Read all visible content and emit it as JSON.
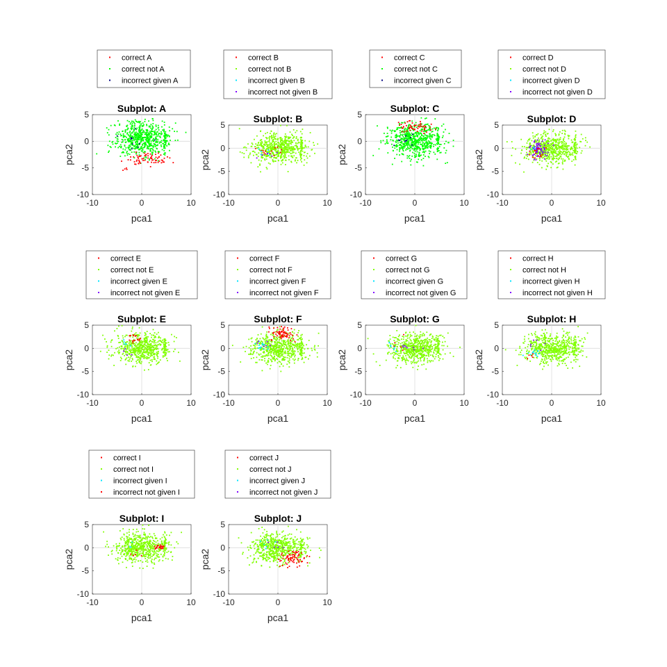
{
  "figure": {
    "colors": {
      "red": "#ff0000",
      "green": "#00ff00",
      "lime": "#80ff00",
      "cyan": "#00e5ff",
      "navy": "#000080",
      "purple": "#7f00ff"
    }
  },
  "chart_data": [
    {
      "type": "scatter",
      "title": "Subplot: A",
      "xlabel": "pca1",
      "ylabel": "pca2",
      "xlim": [
        -10,
        10
      ],
      "ylim": [
        -10,
        5
      ],
      "xticks": [
        -10,
        0,
        10
      ],
      "yticks": [
        -10,
        -5,
        0,
        5
      ],
      "grid": "zero-lines",
      "legend": {
        "placement": "above",
        "entries": [
          {
            "label": "correct A",
            "color": "red"
          },
          {
            "label": "correct not A",
            "color": "green"
          },
          {
            "label": "incorrect given A",
            "color": "navy"
          }
        ]
      },
      "series": [
        {
          "label": "correct not A",
          "color": "green",
          "clouds": [
            [
              0,
              0.6,
              2.8,
              1.6,
              620
            ],
            [
              4.7,
              0.5,
              0.15,
              1.2,
              40
            ]
          ]
        },
        {
          "label": "correct A",
          "color": "red",
          "clouds": [
            [
              1,
              -3.4,
              2.2,
              0.6,
              70
            ],
            [
              -3.5,
              -5,
              0.6,
              0.3,
              4
            ]
          ]
        },
        {
          "label": "incorrect given A",
          "color": "navy",
          "clouds": [
            [
              -1.5,
              0.4,
              1.8,
              0.9,
              10
            ]
          ]
        }
      ]
    },
    {
      "type": "scatter",
      "title": "Subplot: B",
      "xlabel": "pca1",
      "ylabel": "pca2",
      "xlim": [
        -10,
        10
      ],
      "ylim": [
        -10,
        5
      ],
      "xticks": [
        -10,
        0,
        10
      ],
      "yticks": [
        -10,
        -5,
        0,
        5
      ],
      "grid": "zero-lines",
      "legend": {
        "placement": "above",
        "entries": [
          {
            "label": "correct B",
            "color": "red"
          },
          {
            "label": "correct not B",
            "color": "lime"
          },
          {
            "label": "incorrect given B",
            "color": "cyan"
          },
          {
            "label": "incorrect not given B",
            "color": "purple"
          }
        ]
      },
      "series": [
        {
          "label": "correct not B",
          "color": "lime",
          "clouds": [
            [
              0,
              0,
              2.8,
              1.6,
              600
            ],
            [
              4.7,
              0.3,
              0.15,
              1.2,
              40
            ]
          ]
        },
        {
          "label": "correct B",
          "color": "red",
          "clouds": [
            [
              -2.3,
              -0.7,
              1.3,
              0.6,
              14
            ]
          ]
        },
        {
          "label": "incorrect given B",
          "color": "cyan",
          "clouds": [
            [
              -2.7,
              -0.9,
              0.8,
              0.5,
              6
            ]
          ]
        },
        {
          "label": "incorrect not given B",
          "color": "purple",
          "clouds": [
            [
              -1.8,
              -1.5,
              1.0,
              0.6,
              6
            ]
          ]
        }
      ]
    },
    {
      "type": "scatter",
      "title": "Subplot: C",
      "xlabel": "pca1",
      "ylabel": "pca2",
      "xlim": [
        -10,
        10
      ],
      "ylim": [
        -10,
        5
      ],
      "xticks": [
        -10,
        0,
        10
      ],
      "yticks": [
        -10,
        -5,
        0,
        5
      ],
      "grid": "zero-lines",
      "legend": {
        "placement": "above",
        "entries": [
          {
            "label": "correct C",
            "color": "red"
          },
          {
            "label": "correct not C",
            "color": "green"
          },
          {
            "label": "incorrect given C",
            "color": "navy"
          }
        ]
      },
      "series": [
        {
          "label": "correct not C",
          "color": "green",
          "clouds": [
            [
              0,
              0,
              2.8,
              1.7,
              620
            ],
            [
              4.7,
              0.3,
              0.15,
              1.2,
              40
            ]
          ]
        },
        {
          "label": "correct C",
          "color": "red",
          "clouds": [
            [
              0.4,
              2.6,
              1.8,
              0.6,
              55
            ]
          ]
        },
        {
          "label": "incorrect given C",
          "color": "navy",
          "clouds": [
            [
              -1.6,
              0.5,
              1.2,
              0.8,
              10
            ]
          ]
        }
      ]
    },
    {
      "type": "scatter",
      "title": "Subplot: D",
      "xlabel": "pca1",
      "ylabel": "pca2",
      "xlim": [
        -10,
        10
      ],
      "ylim": [
        -10,
        5
      ],
      "xticks": [
        -10,
        0,
        10
      ],
      "yticks": [
        -10,
        -5,
        0,
        5
      ],
      "grid": "zero-lines",
      "legend": {
        "placement": "above",
        "entries": [
          {
            "label": "correct D",
            "color": "red"
          },
          {
            "label": "correct not D",
            "color": "lime"
          },
          {
            "label": "incorrect given D",
            "color": "cyan"
          },
          {
            "label": "incorrect not given D",
            "color": "purple"
          }
        ]
      },
      "series": [
        {
          "label": "correct not D",
          "color": "lime",
          "clouds": [
            [
              0,
              0,
              2.8,
              1.6,
              600
            ],
            [
              4.7,
              0.3,
              0.15,
              1.2,
              40
            ]
          ]
        },
        {
          "label": "incorrect not given D",
          "color": "purple",
          "clouds": [
            [
              -2.6,
              0,
              0.9,
              1.1,
              75
            ]
          ]
        },
        {
          "label": "correct D",
          "color": "red",
          "clouds": [
            [
              -2.4,
              -0.9,
              1.0,
              1.0,
              15
            ]
          ]
        },
        {
          "label": "incorrect given D",
          "color": "cyan",
          "clouds": [
            [
              -3.8,
              0.2,
              0.4,
              0.4,
              4
            ]
          ]
        }
      ]
    },
    {
      "type": "scatter",
      "title": "Subplot: E",
      "xlabel": "pca1",
      "ylabel": "pca2",
      "xlim": [
        -10,
        10
      ],
      "ylim": [
        -10,
        5
      ],
      "xticks": [
        -10,
        0,
        10
      ],
      "yticks": [
        -10,
        -5,
        0,
        5
      ],
      "grid": "zero-lines",
      "legend": {
        "placement": "above",
        "entries": [
          {
            "label": "correct E",
            "color": "red"
          },
          {
            "label": "correct not E",
            "color": "lime"
          },
          {
            "label": "incorrect given E",
            "color": "cyan"
          },
          {
            "label": "incorrect not given E",
            "color": "purple"
          }
        ]
      },
      "series": [
        {
          "label": "correct not E",
          "color": "lime",
          "clouds": [
            [
              0,
              0,
              2.8,
              1.6,
              600
            ],
            [
              4.7,
              0.3,
              0.15,
              1.2,
              40
            ]
          ]
        },
        {
          "label": "correct E",
          "color": "red",
          "clouds": [
            [
              -1.5,
              1.9,
              1.3,
              0.5,
              16
            ]
          ]
        },
        {
          "label": "incorrect given E",
          "color": "cyan",
          "clouds": [
            [
              -3.4,
              0.5,
              0.6,
              0.6,
              6
            ]
          ]
        },
        {
          "label": "incorrect not given E",
          "color": "purple",
          "clouds": [
            [
              -2.5,
              -1.3,
              0.8,
              0.6,
              4
            ]
          ]
        }
      ]
    },
    {
      "type": "scatter",
      "title": "Subplot: F",
      "xlabel": "pca1",
      "ylabel": "pca2",
      "xlim": [
        -10,
        10
      ],
      "ylim": [
        -10,
        5
      ],
      "xticks": [
        -10,
        0,
        10
      ],
      "yticks": [
        -10,
        -5,
        0,
        5
      ],
      "grid": "zero-lines",
      "legend": {
        "placement": "above",
        "entries": [
          {
            "label": "correct F",
            "color": "red"
          },
          {
            "label": "correct not F",
            "color": "lime"
          },
          {
            "label": "incorrect given F",
            "color": "cyan"
          },
          {
            "label": "incorrect not given F",
            "color": "purple"
          }
        ]
      },
      "series": [
        {
          "label": "correct not F",
          "color": "lime",
          "clouds": [
            [
              0,
              0,
              2.8,
              1.6,
              600
            ],
            [
              4.7,
              0.3,
              0.15,
              1.2,
              40
            ]
          ]
        },
        {
          "label": "correct F",
          "color": "red",
          "clouds": [
            [
              1.0,
              3.3,
              1.2,
              0.7,
              70
            ]
          ]
        },
        {
          "label": "incorrect given F",
          "color": "cyan",
          "clouds": [
            [
              -3.3,
              0.3,
              0.7,
              0.6,
              14
            ]
          ]
        },
        {
          "label": "incorrect not given F",
          "color": "purple",
          "clouds": [
            [
              -2.5,
              0.9,
              1.0,
              0.6,
              6
            ]
          ]
        }
      ]
    },
    {
      "type": "scatter",
      "title": "Subplot: G",
      "xlabel": "pca1",
      "ylabel": "pca2",
      "xlim": [
        -10,
        10
      ],
      "ylim": [
        -10,
        5
      ],
      "xticks": [
        -10,
        0,
        10
      ],
      "yticks": [
        -10,
        -5,
        0,
        5
      ],
      "grid": "zero-lines",
      "legend": {
        "placement": "above",
        "entries": [
          {
            "label": "correct G",
            "color": "red"
          },
          {
            "label": "correct not G",
            "color": "lime"
          },
          {
            "label": "incorrect given G",
            "color": "cyan"
          },
          {
            "label": "incorrect not given G",
            "color": "purple"
          }
        ]
      },
      "series": [
        {
          "label": "correct not G",
          "color": "lime",
          "clouds": [
            [
              0,
              0,
              2.8,
              1.6,
              600
            ],
            [
              4.7,
              0.3,
              0.15,
              1.2,
              40
            ]
          ]
        },
        {
          "label": "incorrect given G",
          "color": "cyan",
          "clouds": [
            [
              -4.5,
              0.4,
              0.6,
              0.8,
              8
            ]
          ]
        },
        {
          "label": "incorrect not given G",
          "color": "purple",
          "clouds": [
            [
              -1.5,
              0.2,
              1.5,
              0.4,
              8
            ]
          ]
        },
        {
          "label": "correct G",
          "color": "red",
          "clouds": [
            [
              -3.0,
              0.8,
              1.0,
              0.8,
              5
            ]
          ]
        }
      ]
    },
    {
      "type": "scatter",
      "title": "Subplot: H",
      "xlabel": "pca1",
      "ylabel": "pca2",
      "xlim": [
        -10,
        10
      ],
      "ylim": [
        -10,
        5
      ],
      "xticks": [
        -10,
        0,
        10
      ],
      "yticks": [
        -10,
        -5,
        0,
        5
      ],
      "grid": "zero-lines",
      "legend": {
        "placement": "above",
        "entries": [
          {
            "label": "correct H",
            "color": "red"
          },
          {
            "label": "correct not H",
            "color": "lime"
          },
          {
            "label": "incorrect given H",
            "color": "cyan"
          },
          {
            "label": "incorrect not given H",
            "color": "purple"
          }
        ]
      },
      "series": [
        {
          "label": "correct not H",
          "color": "lime",
          "clouds": [
            [
              0,
              0,
              2.8,
              1.6,
              600
            ],
            [
              4.7,
              0.3,
              0.15,
              1.2,
              40
            ]
          ]
        },
        {
          "label": "incorrect given H",
          "color": "cyan",
          "clouds": [
            [
              -3.5,
              -1.0,
              0.8,
              0.6,
              14
            ]
          ]
        },
        {
          "label": "incorrect not given H",
          "color": "purple",
          "clouds": [
            [
              -3.0,
              0.6,
              1.0,
              0.8,
              6
            ]
          ]
        },
        {
          "label": "correct H",
          "color": "red",
          "clouds": [
            [
              -4.2,
              -1.4,
              0.5,
              0.5,
              5
            ]
          ]
        }
      ]
    },
    {
      "type": "scatter",
      "title": "Subplot: I",
      "xlabel": "pca1",
      "ylabel": "pca2",
      "xlim": [
        -10,
        10
      ],
      "ylim": [
        -10,
        5
      ],
      "xticks": [
        -10,
        0,
        10
      ],
      "yticks": [
        -10,
        -5,
        0,
        5
      ],
      "grid": "zero-lines",
      "legend": {
        "placement": "above",
        "entries": [
          {
            "label": "correct I",
            "color": "red"
          },
          {
            "label": "correct not I",
            "color": "lime"
          },
          {
            "label": "incorrect given I",
            "color": "cyan"
          },
          {
            "label": "incorrect not given I",
            "color": "red"
          }
        ]
      },
      "series": [
        {
          "label": "correct not I",
          "color": "lime",
          "clouds": [
            [
              0,
              0,
              2.8,
              1.6,
              600
            ],
            [
              4.7,
              0.3,
              0.15,
              1.2,
              40
            ]
          ]
        },
        {
          "label": "correct I",
          "color": "red",
          "clouds": [
            [
              4.0,
              0.1,
              0.6,
              0.3,
              22
            ]
          ]
        },
        {
          "label": "incorrect given I",
          "color": "cyan",
          "clouds": [
            [
              -2.5,
              0.3,
              0.5,
              0.5,
              3
            ]
          ]
        },
        {
          "label": "incorrect not given I",
          "color": "red",
          "clouds": [
            [
              -1.0,
              -1.5,
              1.0,
              0.5,
              5
            ]
          ]
        }
      ]
    },
    {
      "type": "scatter",
      "title": "Subplot: J",
      "xlabel": "pca1",
      "ylabel": "pca2",
      "xlim": [
        -10,
        10
      ],
      "ylim": [
        -10,
        5
      ],
      "xticks": [
        -10,
        0,
        10
      ],
      "yticks": [
        -10,
        -5,
        0,
        5
      ],
      "grid": "zero-lines",
      "legend": {
        "placement": "above",
        "entries": [
          {
            "label": "correct J",
            "color": "red"
          },
          {
            "label": "correct not J",
            "color": "lime"
          },
          {
            "label": "incorrect given J",
            "color": "cyan"
          },
          {
            "label": "incorrect not given J",
            "color": "purple"
          }
        ]
      },
      "series": [
        {
          "label": "correct not J",
          "color": "lime",
          "clouds": [
            [
              0,
              0,
              2.8,
              1.6,
              600
            ],
            [
              4.7,
              0.3,
              0.15,
              1.2,
              40
            ]
          ]
        },
        {
          "label": "correct J",
          "color": "red",
          "clouds": [
            [
              2.8,
              -2.2,
              1.4,
              0.8,
              70
            ]
          ]
        },
        {
          "label": "incorrect given J",
          "color": "cyan",
          "clouds": [
            [
              -2.0,
              0.8,
              1.0,
              0.6,
              6
            ]
          ]
        },
        {
          "label": "incorrect not given J",
          "color": "purple",
          "clouds": [
            [
              -0.5,
              0.3,
              1.5,
              0.8,
              5
            ]
          ]
        }
      ]
    }
  ]
}
